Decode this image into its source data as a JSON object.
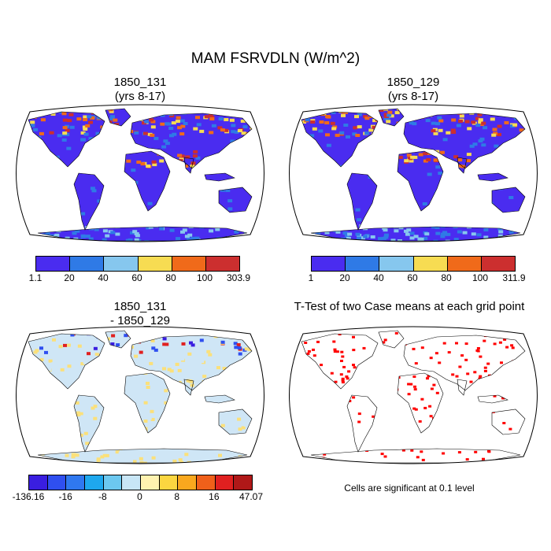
{
  "figure": {
    "title": "MAM FSRVDLN (W/m^2)",
    "panels": [
      {
        "title_line1": "1850_131",
        "title_line2": "(yrs 8-17)"
      },
      {
        "title_line1": "1850_129",
        "title_line2": "(yrs 8-17)"
      },
      {
        "title_line1": "1850_131",
        "title_line2": "- 1850_129"
      },
      {
        "title_line1": "T-Test of two Case means at each grid point",
        "title_line2": ""
      }
    ],
    "significance_note": "Cells are significant at 0.1 level"
  },
  "colorbars": {
    "p1": {
      "labels": [
        "1.1",
        "20",
        "40",
        "60",
        "80",
        "100",
        "303.9"
      ],
      "colors": [
        "#4a2cf0",
        "#2f7ae6",
        "#86c7ee",
        "#f7dc52",
        "#f06a1a",
        "#cc2f2f"
      ]
    },
    "p2": {
      "labels": [
        "1",
        "20",
        "40",
        "60",
        "80",
        "100",
        "311.9"
      ],
      "colors": [
        "#4a2cf0",
        "#2f7ae6",
        "#86c7ee",
        "#f7dc52",
        "#f06a1a",
        "#cc2f2f"
      ]
    },
    "p3": {
      "labels": [
        "-136.16",
        "-16",
        "-8",
        "0",
        "8",
        "16",
        "47.07"
      ],
      "colors": [
        "#3a1ee0",
        "#2f4ff0",
        "#2f78f0",
        "#1ea8ee",
        "#6cc8f0",
        "#c8e6f6",
        "#fff2b0",
        "#fbd640",
        "#f9a81e",
        "#f0601a",
        "#e02020",
        "#b01818"
      ]
    }
  },
  "map_colors": {
    "p1": {
      "ocean": "#ffffff",
      "base": "#4a2cf0",
      "mid": "#2f7ae6",
      "light": "#86c7ee",
      "yellow": "#f7dc52",
      "orange": "#f06a1a",
      "red": "#cc2f2f"
    },
    "p3": {
      "ocean": "#ffffff",
      "base": "#cfe6f6",
      "yellow": "#fbe07a",
      "blue": "#2f4ff0",
      "dark": "#3a1ee0",
      "red": "#e02020"
    },
    "p4": {
      "ocean": "#ffffff",
      "sig": "#ff0000"
    }
  }
}
